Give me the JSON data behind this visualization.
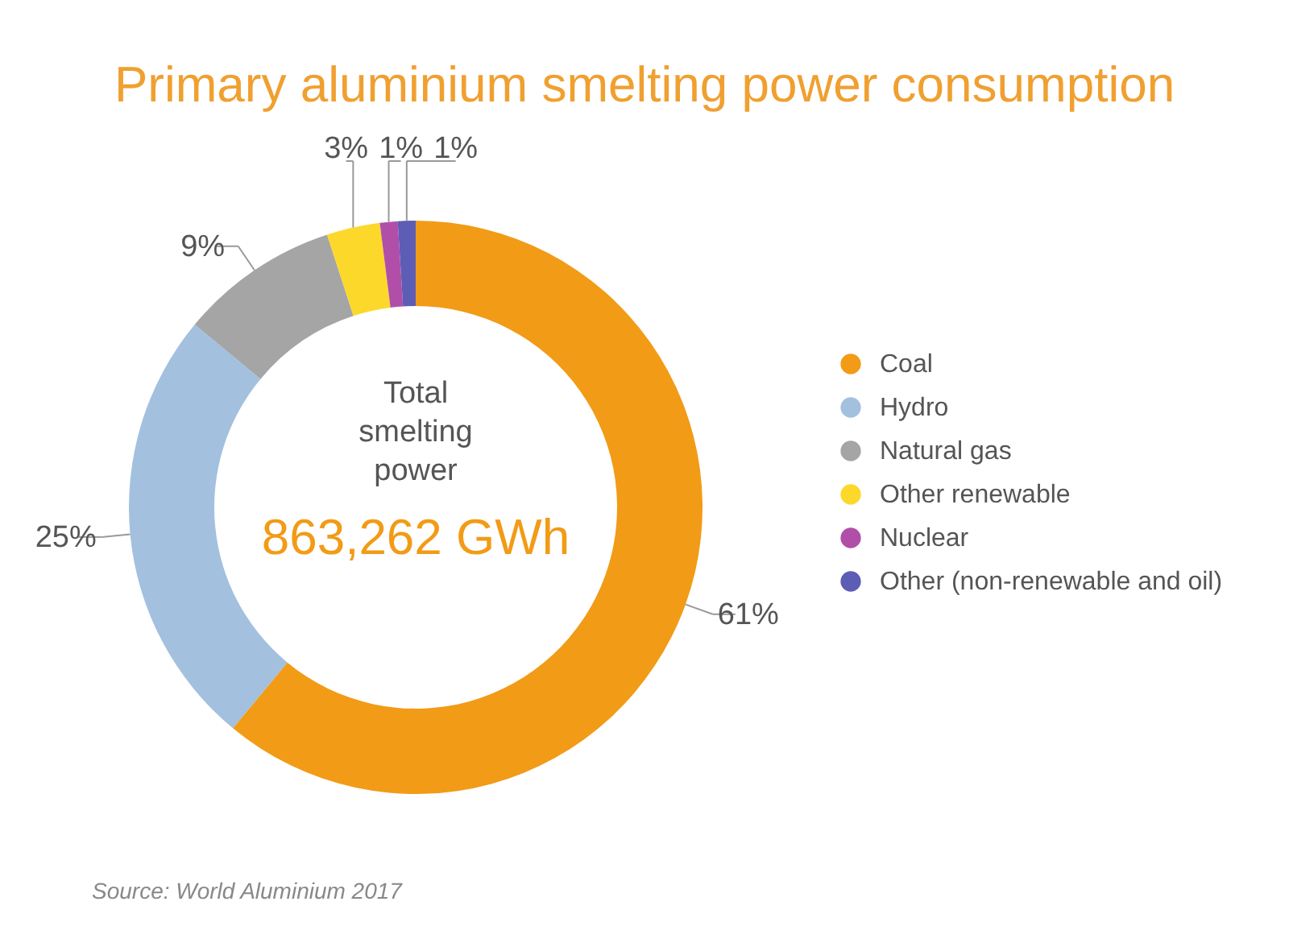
{
  "chart_data": {
    "type": "donut",
    "title": "Primary aluminium smelting power consumption",
    "categories": [
      "Coal",
      "Hydro",
      "Natural gas",
      "Other renewable",
      "Nuclear",
      "Other (non-renewable and oil)"
    ],
    "values": [
      61,
      25,
      9,
      3,
      1,
      1
    ],
    "value_labels": [
      "61%",
      "25%",
      "9%",
      "3%",
      "1%",
      "1%"
    ],
    "colors": [
      "#f29b16",
      "#a3c0df",
      "#a5a5a5",
      "#fcd82b",
      "#b14fa8",
      "#5d5db5"
    ],
    "legend": "right",
    "annotations": [
      "Total smelting power",
      "863,262 GWh",
      "Source: World Aluminium 2017"
    ]
  }
}
